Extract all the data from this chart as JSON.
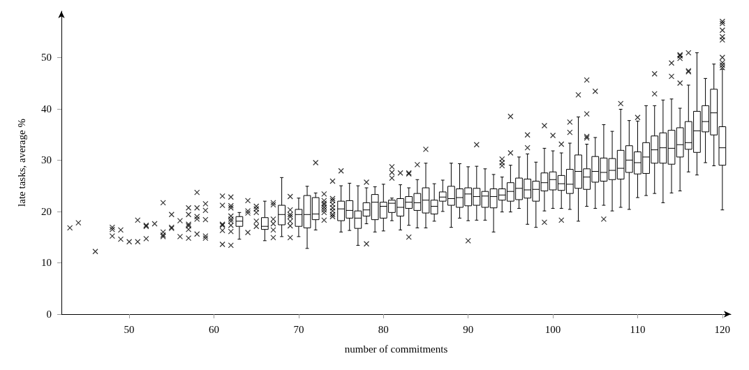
{
  "chart_data": {
    "type": "box",
    "xlabel": "number of commitments",
    "ylabel": "late tasks, average %",
    "xlim": [
      42,
      121
    ],
    "xticks": [
      50,
      60,
      70,
      80,
      90,
      100,
      110,
      120
    ],
    "ylim": [
      0,
      59
    ],
    "yticks": [
      0,
      10,
      20,
      30,
      40,
      50
    ],
    "grid": false,
    "marker": "cross",
    "series": [
      {
        "color": "#000000",
        "x": [
          63,
          66,
          68,
          70,
          71,
          72,
          75,
          76,
          77,
          78,
          79,
          80,
          81,
          82,
          83,
          84,
          85,
          86,
          87,
          88,
          89,
          90,
          91,
          92,
          93,
          94,
          95,
          96,
          97,
          98,
          99,
          100,
          101,
          102,
          103,
          104,
          105,
          106,
          107,
          108,
          109,
          110,
          111,
          112,
          113,
          114,
          115,
          116,
          117,
          118,
          119,
          120
        ],
        "boxes": [
          {
            "low": 14.6,
            "q1": 17.1,
            "median": 18.1,
            "q3": 19.0,
            "high": 19.8
          },
          {
            "low": 14.3,
            "q1": 16.5,
            "median": 17.1,
            "q3": 18.8,
            "high": 22.0
          },
          {
            "low": 15.1,
            "q1": 17.4,
            "median": 19.4,
            "q3": 21.2,
            "high": 26.6
          },
          {
            "low": 15.1,
            "q1": 17.1,
            "median": 19.4,
            "q3": 20.4,
            "high": 22.6
          },
          {
            "low": 12.8,
            "q1": 16.8,
            "median": 19.4,
            "q3": 23.1,
            "high": 24.9
          },
          {
            "low": 16.4,
            "q1": 18.4,
            "median": 19.5,
            "q3": 22.7,
            "high": 23.6,
            "outliers": [
              29.5
            ]
          },
          {
            "low": 16.0,
            "q1": 18.2,
            "median": 20.5,
            "q3": 22.0,
            "high": 25.0,
            "outliers": [
              27.9
            ]
          },
          {
            "low": 16.3,
            "q1": 18.7,
            "median": 20.2,
            "q3": 22.1,
            "high": 25.5
          },
          {
            "low": 13.4,
            "q1": 16.7,
            "median": 18.7,
            "q3": 20.1,
            "high": 25.0
          },
          {
            "low": 17.6,
            "q1": 19.1,
            "median": 20.3,
            "q3": 21.7,
            "high": 24.6,
            "outliers": [
              25.7,
              13.7
            ]
          },
          {
            "low": 16.0,
            "q1": 18.4,
            "median": 21.8,
            "q3": 23.3,
            "high": 24.8
          },
          {
            "low": 16.2,
            "q1": 18.7,
            "median": 21.0,
            "q3": 21.8,
            "high": 25.3
          },
          {
            "low": 18.2,
            "q1": 19.8,
            "median": 21.6,
            "q3": 22.2,
            "high": 22.6,
            "outliers": [
              28.7,
              27.6,
              26.5
            ]
          },
          {
            "low": 16.4,
            "q1": 19.1,
            "median": 20.8,
            "q3": 22.5,
            "high": 25.2,
            "outliers": [
              27.5
            ]
          },
          {
            "low": 17.3,
            "q1": 20.6,
            "median": 21.8,
            "q3": 22.9,
            "high": 24.6,
            "outliers": [
              27.5,
              27.3,
              15.0
            ]
          },
          {
            "low": 16.8,
            "q1": 20.2,
            "median": 21.7,
            "q3": 23.5,
            "high": 26.2,
            "outliers": [
              29.1
            ]
          },
          {
            "low": 16.8,
            "q1": 19.7,
            "median": 22.2,
            "q3": 24.6,
            "high": 29.4,
            "outliers": [
              32.1
            ]
          },
          {
            "low": 18.1,
            "q1": 19.5,
            "median": 21.0,
            "q3": 22.2,
            "high": 25.4
          },
          {
            "low": 20.0,
            "q1": 22.0,
            "median": 22.8,
            "q3": 23.8,
            "high": 26.1
          },
          {
            "low": 16.9,
            "q1": 21.2,
            "median": 22.5,
            "q3": 24.9,
            "high": 29.4
          },
          {
            "low": 18.7,
            "q1": 20.8,
            "median": 22.7,
            "q3": 24.4,
            "high": 29.3
          },
          {
            "low": 18.2,
            "q1": 21.1,
            "median": 23.4,
            "q3": 24.6,
            "high": 28.7,
            "outliers": [
              14.3
            ]
          },
          {
            "low": 18.3,
            "q1": 21.2,
            "median": 22.9,
            "q3": 24.5,
            "high": 28.8,
            "outliers": [
              33.0
            ]
          },
          {
            "low": 18.3,
            "q1": 20.8,
            "median": 23.0,
            "q3": 23.9,
            "high": 28.3
          },
          {
            "low": 16.0,
            "q1": 20.7,
            "median": 22.9,
            "q3": 24.4,
            "high": 27.2
          },
          {
            "low": 19.9,
            "q1": 22.2,
            "median": 23.2,
            "q3": 24.4,
            "high": 26.7,
            "outliers": [
              30.2,
              29.5,
              28.9
            ]
          },
          {
            "low": 19.9,
            "q1": 22.0,
            "median": 23.9,
            "q3": 25.6,
            "high": 29.0,
            "outliers": [
              38.5,
              31.4
            ]
          },
          {
            "low": 20.6,
            "q1": 22.3,
            "median": 24.5,
            "q3": 26.5,
            "high": 30.6
          },
          {
            "low": 17.5,
            "q1": 22.6,
            "median": 24.2,
            "q3": 26.3,
            "high": 31.2,
            "outliers": [
              34.9,
              32.4
            ]
          },
          {
            "low": 16.9,
            "q1": 22.0,
            "median": 24.3,
            "q3": 25.9,
            "high": 29.6
          },
          {
            "low": 20.1,
            "q1": 24.0,
            "median": 25.6,
            "q3": 27.5,
            "high": 32.3,
            "outliers": [
              36.7,
              17.9
            ]
          },
          {
            "low": 20.6,
            "q1": 24.2,
            "median": 26.2,
            "q3": 27.7,
            "high": 31.8,
            "outliers": [
              34.8
            ]
          },
          {
            "low": 20.6,
            "q1": 24.1,
            "median": 25.4,
            "q3": 27.0,
            "high": 31.4,
            "outliers": [
              33.1,
              18.3
            ]
          },
          {
            "low": 20.4,
            "q1": 23.5,
            "median": 25.3,
            "q3": 28.2,
            "high": 33.3,
            "outliers": [
              37.4,
              35.4
            ]
          },
          {
            "low": 18.1,
            "q1": 24.5,
            "median": 27.8,
            "q3": 31.0,
            "high": 38.4,
            "outliers": [
              42.7
            ]
          },
          {
            "low": 21.0,
            "q1": 24.3,
            "median": 26.7,
            "q3": 28.3,
            "high": 33.1,
            "outliers": [
              45.6,
              39.0,
              34.6,
              34.3
            ]
          },
          {
            "low": 20.6,
            "q1": 25.7,
            "median": 27.8,
            "q3": 30.7,
            "high": 34.4,
            "outliers": [
              43.4
            ]
          },
          {
            "low": 21.2,
            "q1": 25.9,
            "median": 27.6,
            "q3": 30.4,
            "high": 36.9,
            "outliers": [
              18.5
            ]
          },
          {
            "low": 20.1,
            "q1": 26.2,
            "median": 28.0,
            "q3": 30.3,
            "high": 35.6
          },
          {
            "low": 20.8,
            "q1": 26.3,
            "median": 28.4,
            "q3": 31.9,
            "high": 39.9,
            "outliers": [
              41.0
            ]
          },
          {
            "low": 20.4,
            "q1": 27.6,
            "median": 30.0,
            "q3": 32.8,
            "high": 37.7
          },
          {
            "low": 22.7,
            "q1": 27.3,
            "median": 29.5,
            "q3": 31.6,
            "high": 37.6,
            "outliers": [
              38.3
            ]
          },
          {
            "low": 23.1,
            "q1": 27.4,
            "median": 30.6,
            "q3": 33.4,
            "high": 40.6
          },
          {
            "low": 23.5,
            "q1": 29.4,
            "median": 32.0,
            "q3": 34.7,
            "high": 40.6,
            "outliers": [
              46.8,
              42.9
            ]
          },
          {
            "low": 21.7,
            "q1": 29.4,
            "median": 32.4,
            "q3": 35.3,
            "high": 41.7
          },
          {
            "low": 23.6,
            "q1": 29.2,
            "median": 32.3,
            "q3": 35.8,
            "high": 41.9,
            "outliers": [
              48.9,
              46.3
            ]
          },
          {
            "low": 24.0,
            "q1": 30.6,
            "median": 33.0,
            "q3": 36.3,
            "high": 40.1,
            "outliers": [
              50.5,
              50.3,
              49.8,
              45.0
            ]
          },
          {
            "low": 27.7,
            "q1": 32.1,
            "median": 33.4,
            "q3": 37.5,
            "high": 44.6,
            "outliers": [
              50.9,
              47.4,
              47.2
            ]
          },
          {
            "low": 27.1,
            "q1": 31.5,
            "median": 35.7,
            "q3": 39.5,
            "high": 50.9
          },
          {
            "low": 29.5,
            "q1": 35.5,
            "median": 37.5,
            "q3": 40.6,
            "high": 45.9
          },
          {
            "low": 28.9,
            "q1": 34.9,
            "median": 39.2,
            "q3": 43.8,
            "high": 48.7
          },
          {
            "low": 20.3,
            "q1": 29.0,
            "median": 32.4,
            "q3": 36.5,
            "high": 47.7,
            "outliers": [
              57.0,
              56.6,
              55.3,
              54.0,
              53.4,
              50.0,
              49.0,
              48.5,
              48.0
            ]
          }
        ]
      },
      {
        "type": "scatter",
        "color": "#000000",
        "x": [
          43,
          44,
          46,
          48,
          48,
          48,
          49,
          49,
          50,
          51,
          51,
          52,
          52,
          52,
          53,
          54,
          54,
          54,
          54,
          55,
          55,
          55,
          56,
          56,
          57,
          57,
          57,
          57,
          57,
          57,
          58,
          58,
          58,
          58,
          58,
          59,
          59,
          59,
          59,
          59,
          61,
          61,
          61,
          61,
          61,
          61,
          62,
          62,
          62,
          62,
          62,
          62,
          62,
          62,
          62,
          64,
          64,
          64,
          64,
          65,
          65,
          65,
          65,
          65,
          67,
          67,
          67,
          67,
          67,
          67,
          69,
          69,
          69,
          69,
          69,
          69,
          69,
          73,
          73,
          73,
          73,
          73,
          73,
          73,
          73,
          74,
          74,
          74,
          74,
          74,
          74,
          74,
          74
        ],
        "values": [
          16.8,
          17.8,
          12.2,
          16.9,
          16.5,
          15.2,
          16.4,
          14.6,
          14.1,
          18.3,
          14.1,
          17.3,
          17.1,
          14.7,
          17.6,
          21.7,
          16.0,
          15.4,
          15.1,
          19.4,
          16.9,
          16.7,
          18.2,
          15.1,
          20.7,
          19.4,
          17.5,
          17.2,
          16.5,
          14.8,
          23.7,
          20.7,
          19.0,
          18.5,
          15.6,
          21.5,
          20.2,
          18.4,
          15.2,
          14.8,
          23.0,
          21.2,
          17.5,
          17.3,
          16.3,
          13.6,
          22.8,
          21.1,
          20.7,
          19.1,
          18.5,
          18.1,
          17.3,
          16.1,
          13.4,
          22.1,
          20.1,
          19.7,
          15.9,
          21.0,
          20.5,
          19.8,
          18.1,
          17.1,
          21.7,
          21.3,
          18.5,
          17.6,
          16.4,
          14.9,
          22.9,
          20.3,
          19.4,
          19.0,
          18.1,
          17.2,
          14.9,
          23.4,
          22.1,
          21.6,
          21.3,
          20.8,
          20.3,
          19.8,
          18.3,
          25.9,
          22.5,
          22.1,
          21.4,
          20.7,
          20.1,
          19.4,
          19.0
        ]
      }
    ]
  }
}
